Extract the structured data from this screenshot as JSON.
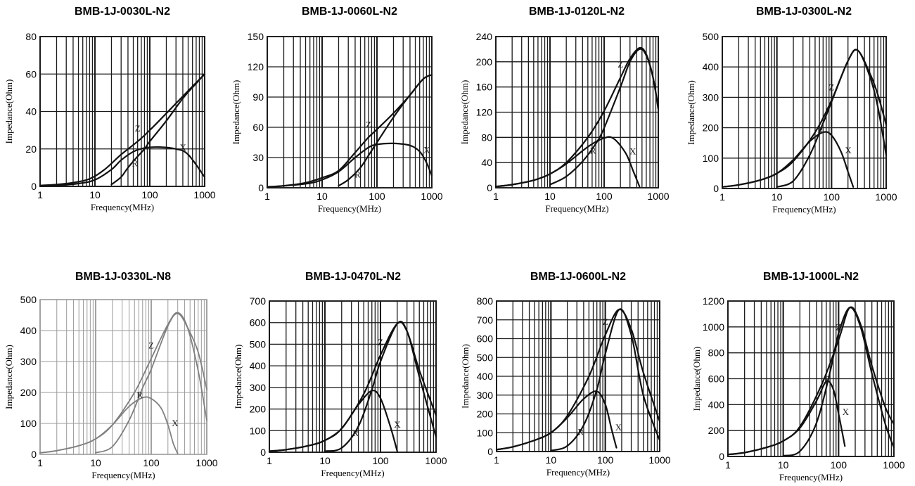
{
  "chart_data": [
    {
      "type": "line",
      "title": "BMB-1J-0030L-N2",
      "xlabel": "Frequency(MHz)",
      "ylabel": "Impedance(Ohm)",
      "xscale": "log",
      "xlim": [
        1,
        1000
      ],
      "ylim": [
        0,
        80
      ],
      "xticks": [
        "1",
        "10",
        "100",
        "1000"
      ],
      "yticks": [
        0,
        20,
        40,
        60,
        80
      ],
      "grid": true,
      "style": "scanned-black",
      "series": [
        {
          "name": "Z",
          "x": [
            1,
            2,
            4,
            8,
            15,
            30,
            60,
            100,
            200,
            500,
            1000
          ],
          "y": [
            0.5,
            1,
            2,
            4,
            9,
            17,
            24,
            30,
            39,
            51,
            60
          ]
        },
        {
          "name": "X",
          "x": [
            1,
            2,
            5,
            10,
            20,
            30,
            50,
            80,
            150,
            300,
            500,
            1000
          ],
          "y": [
            0.2,
            0.5,
            1.5,
            3.5,
            9,
            14,
            18.5,
            20.5,
            21,
            20,
            17,
            5
          ]
        },
        {
          "name": "R",
          "x": [
            20,
            30,
            40,
            60,
            80,
            100,
            200,
            400,
            700,
            1000
          ],
          "y": [
            1,
            5,
            10,
            16,
            20,
            24,
            35,
            47,
            55,
            60
          ]
        }
      ]
    },
    {
      "type": "line",
      "title": "BMB-1J-0060L-N2",
      "xlabel": "Frequency(MHz)",
      "ylabel": "Impedance(Ohm)",
      "xscale": "log",
      "xlim": [
        1,
        1000
      ],
      "ylim": [
        0,
        150
      ],
      "xticks": [
        "1",
        "10",
        "100",
        "1000"
      ],
      "yticks": [
        0,
        30,
        60,
        90,
        120,
        150
      ],
      "grid": true,
      "style": "scanned-black",
      "series": [
        {
          "name": "Z",
          "x": [
            1,
            2,
            5,
            10,
            20,
            40,
            70,
            100,
            200,
            400,
            700,
            1000
          ],
          "y": [
            1,
            2,
            5,
            10,
            17,
            35,
            50,
            58,
            74,
            92,
            108,
            112
          ]
        },
        {
          "name": "X",
          "x": [
            1,
            5,
            10,
            20,
            40,
            70,
            100,
            200,
            400,
            600,
            800,
            1000
          ],
          "y": [
            0.5,
            4,
            8,
            16,
            30,
            40,
            43,
            44,
            42,
            36,
            25,
            12
          ]
        },
        {
          "name": "R",
          "x": [
            20,
            30,
            50,
            70,
            100,
            200,
            400,
            700,
            1000
          ],
          "y": [
            2,
            8,
            20,
            32,
            45,
            70,
            92,
            108,
            112
          ]
        }
      ]
    },
    {
      "type": "line",
      "title": "BMB-1J-0120L-N2",
      "xlabel": "Frequency(MHz)",
      "ylabel": "Impedance(Ohm)",
      "xscale": "log",
      "xlim": [
        1,
        1000
      ],
      "ylim": [
        0,
        240
      ],
      "xticks": [
        "1",
        "10",
        "100",
        "1000"
      ],
      "yticks": [
        0,
        40,
        80,
        120,
        160,
        200,
        240
      ],
      "grid": true,
      "style": "scanned-black",
      "series": [
        {
          "name": "Z",
          "x": [
            1,
            2,
            5,
            10,
            20,
            50,
            100,
            200,
            300,
            450,
            600,
            800,
            1000
          ],
          "y": [
            2,
            5,
            12,
            22,
            40,
            80,
            122,
            175,
            205,
            222,
            212,
            175,
            125
          ]
        },
        {
          "name": "X",
          "x": [
            1,
            2,
            5,
            10,
            20,
            50,
            100,
            150,
            250,
            350,
            450
          ],
          "y": [
            2,
            5,
            12,
            22,
            38,
            65,
            79,
            78,
            55,
            25,
            2
          ]
        },
        {
          "name": "R",
          "x": [
            10,
            20,
            40,
            70,
            100,
            200,
            300,
            450,
            600,
            800,
            1000
          ],
          "y": [
            5,
            18,
            42,
            70,
            95,
            160,
            200,
            220,
            210,
            175,
            125
          ]
        }
      ]
    },
    {
      "type": "line",
      "title": "BMB-1J-0300L-N2",
      "xlabel": "Frequency(MHz)",
      "ylabel": "Impedance(Ohm)",
      "xscale": "log",
      "xlim": [
        1,
        1000
      ],
      "ylim": [
        0,
        500
      ],
      "xticks": [
        "1",
        "10",
        "100",
        "1000"
      ],
      "yticks": [
        0,
        100,
        200,
        300,
        400,
        500
      ],
      "grid": true,
      "style": "scanned-black",
      "series": [
        {
          "name": "Z",
          "x": [
            1,
            2,
            5,
            10,
            20,
            50,
            100,
            200,
            300,
            500,
            700,
            1000
          ],
          "y": [
            5,
            12,
            28,
            50,
            90,
            185,
            290,
            420,
            455,
            370,
            270,
            110
          ]
        },
        {
          "name": "X",
          "x": [
            1,
            2,
            5,
            10,
            20,
            40,
            70,
            100,
            150,
            200,
            250
          ],
          "y": [
            5,
            12,
            28,
            50,
            95,
            155,
            185,
            175,
            120,
            55,
            5
          ]
        },
        {
          "name": "R",
          "x": [
            10,
            20,
            40,
            70,
            100,
            200,
            300,
            500,
            700,
            1000
          ],
          "y": [
            5,
            25,
            110,
            215,
            285,
            420,
            455,
            380,
            310,
            210
          ]
        }
      ]
    },
    {
      "type": "line",
      "title": "BMB-1J-0330L-N8",
      "xlabel": "Frequency(MHz)",
      "ylabel": "Impedance(Ohm)",
      "xscale": "log",
      "xlim": [
        1,
        1000
      ],
      "ylim": [
        0,
        500
      ],
      "xticks": [
        "1",
        "10",
        "100",
        "1000"
      ],
      "yticks": [
        0,
        100,
        200,
        300,
        400,
        500
      ],
      "grid": true,
      "style": "clean-gray",
      "series": [
        {
          "name": "Z",
          "x": [
            1,
            2,
            5,
            10,
            20,
            50,
            100,
            200,
            300,
            450,
            700,
            1000
          ],
          "y": [
            5,
            12,
            28,
            50,
            95,
            200,
            310,
            420,
            458,
            410,
            270,
            110
          ]
        },
        {
          "name": "X",
          "x": [
            1,
            2,
            5,
            10,
            20,
            40,
            70,
            100,
            150,
            200,
            250,
            300
          ],
          "y": [
            5,
            12,
            28,
            50,
            95,
            155,
            183,
            180,
            150,
            95,
            35,
            2
          ]
        },
        {
          "name": "R",
          "x": [
            10,
            20,
            40,
            70,
            100,
            200,
            300,
            450,
            700,
            1000
          ],
          "y": [
            5,
            25,
            110,
            215,
            275,
            415,
            455,
            410,
            330,
            210
          ]
        }
      ]
    },
    {
      "type": "line",
      "title": "BMB-1J-0470L-N2",
      "xlabel": "Frequency(MHz)",
      "ylabel": "Impedance(Ohm)",
      "xscale": "log",
      "xlim": [
        1,
        1000
      ],
      "ylim": [
        0,
        700
      ],
      "xticks": [
        "1",
        "10",
        "100",
        "1000"
      ],
      "yticks": [
        0,
        100,
        200,
        300,
        400,
        500,
        600,
        700
      ],
      "grid": true,
      "style": "scanned-black",
      "series": [
        {
          "name": "Z",
          "x": [
            1,
            2,
            5,
            10,
            20,
            50,
            100,
            200,
            300,
            500,
            1000
          ],
          "y": [
            5,
            12,
            30,
            55,
            110,
            270,
            450,
            595,
            560,
            380,
            170
          ]
        },
        {
          "name": "X",
          "x": [
            1,
            2,
            5,
            10,
            20,
            40,
            70,
            100,
            150,
            200
          ],
          "y": [
            5,
            12,
            30,
            55,
            110,
            220,
            285,
            250,
            120,
            5
          ]
        },
        {
          "name": "R",
          "x": [
            10,
            20,
            40,
            70,
            100,
            200,
            300,
            500,
            1000
          ],
          "y": [
            5,
            20,
            120,
            290,
            420,
            595,
            560,
            350,
            70
          ]
        }
      ]
    },
    {
      "type": "line",
      "title": "BMB-1J-0600L-N2",
      "xlabel": "Frequency(MHz)",
      "ylabel": "Impedance(Ohm)",
      "xscale": "log",
      "xlim": [
        1,
        1000
      ],
      "ylim": [
        0,
        800
      ],
      "xticks": [
        "1",
        "10",
        "100",
        "1000"
      ],
      "yticks": [
        0,
        100,
        200,
        300,
        400,
        500,
        600,
        700,
        800
      ],
      "grid": true,
      "style": "scanned-black",
      "series": [
        {
          "name": "Z",
          "x": [
            1,
            2,
            5,
            10,
            20,
            50,
            100,
            180,
            300,
            500,
            1000
          ],
          "y": [
            10,
            25,
            60,
            100,
            190,
            400,
            620,
            755,
            650,
            420,
            160
          ]
        },
        {
          "name": "X",
          "x": [
            1,
            2,
            5,
            10,
            20,
            40,
            70,
            100,
            130,
            160
          ],
          "y": [
            10,
            25,
            60,
            100,
            180,
            280,
            320,
            250,
            120,
            20
          ]
        },
        {
          "name": "R",
          "x": [
            10,
            20,
            40,
            70,
            100,
            180,
            300,
            500,
            1000
          ],
          "y": [
            5,
            30,
            140,
            330,
            520,
            755,
            620,
            300,
            60
          ]
        }
      ]
    },
    {
      "type": "line",
      "title": "BMB-1J-1000L-N2",
      "xlabel": "Frequency(MHz)",
      "ylabel": "Impedance(Ohm)",
      "xscale": "log",
      "xlim": [
        1,
        1000
      ],
      "ylim": [
        0,
        1200
      ],
      "xticks": [
        "1",
        "10",
        "100",
        "1000"
      ],
      "yticks": [
        0,
        200,
        400,
        600,
        800,
        1000,
        1200
      ],
      "grid": true,
      "style": "scanned-black",
      "series": [
        {
          "name": "Z",
          "x": [
            1,
            2,
            5,
            10,
            20,
            50,
            100,
            160,
            250,
            400,
            700,
            1000
          ],
          "y": [
            15,
            30,
            70,
            120,
            230,
            560,
            900,
            1150,
            1020,
            700,
            380,
            250
          ]
        },
        {
          "name": "X",
          "x": [
            1,
            2,
            5,
            10,
            20,
            40,
            60,
            80,
            100,
            130
          ],
          "y": [
            15,
            30,
            70,
            120,
            220,
            430,
            580,
            520,
            330,
            80
          ]
        },
        {
          "name": "R",
          "x": [
            10,
            20,
            40,
            70,
            100,
            160,
            250,
            400,
            700,
            1000
          ],
          "y": [
            5,
            40,
            260,
            650,
            950,
            1150,
            1000,
            640,
            250,
            70
          ]
        }
      ]
    }
  ]
}
